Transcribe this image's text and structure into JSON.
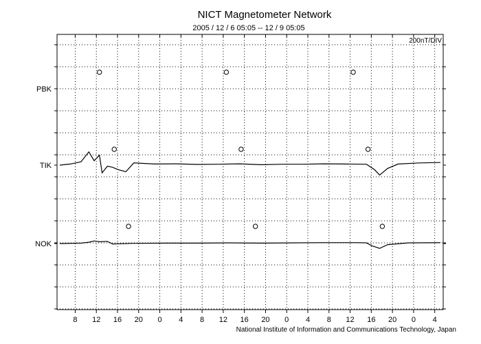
{
  "chart_data": {
    "type": "line",
    "title": "NICT Magnetometer Network",
    "subtitle": "2005 / 12 /  6   05:05 -- 12 /  9   05:05",
    "scale_label": "200nT/DIV",
    "footer": "National Institute of Information and Communications Technology, Japan",
    "x_tick_labels": [
      "8",
      "12",
      "16",
      "20",
      "0",
      "4",
      "8",
      "12",
      "16",
      "20",
      "0",
      "4",
      "8",
      "12",
      "16",
      "20",
      "0",
      "4"
    ],
    "x_hours_from_start": [
      2.917,
      6.917,
      10.917,
      14.917,
      18.917,
      22.917,
      26.917,
      30.917,
      34.917,
      38.917,
      42.917,
      46.917,
      50.917,
      54.917,
      58.917,
      62.917,
      66.917,
      70.917
    ],
    "x_range_hours": [
      0,
      72
    ],
    "grid": true,
    "stations": [
      {
        "name": "PBK",
        "midnight_markers_hours": [
          7.5,
          31.5,
          55.5
        ],
        "series": []
      },
      {
        "name": "TIK",
        "midnight_markers_hours": [
          10.3,
          34.3,
          58.3
        ],
        "series": [
          [
            0,
            0
          ],
          [
            2,
            0.05
          ],
          [
            4,
            0.15
          ],
          [
            5.5,
            0.6
          ],
          [
            6.5,
            0.2
          ],
          [
            7.5,
            0.45
          ],
          [
            8,
            -0.35
          ],
          [
            9,
            -0.05
          ],
          [
            10,
            -0.1
          ],
          [
            11,
            -0.2
          ],
          [
            12.5,
            -0.3
          ],
          [
            14,
            0.1
          ],
          [
            18,
            0.05
          ],
          [
            22,
            0.06
          ],
          [
            26,
            0.03
          ],
          [
            30,
            0.04
          ],
          [
            34,
            0.06
          ],
          [
            38,
            0.02
          ],
          [
            42,
            0.04
          ],
          [
            46,
            0.04
          ],
          [
            50,
            0.06
          ],
          [
            54,
            0.05
          ],
          [
            58,
            0.04
          ],
          [
            59.5,
            -0.2
          ],
          [
            60.5,
            -0.45
          ],
          [
            62,
            -0.15
          ],
          [
            64,
            0.05
          ],
          [
            68,
            0.1
          ],
          [
            72,
            0.12
          ]
        ]
      },
      {
        "name": "NOK",
        "midnight_markers_hours": [
          13.0,
          37.0,
          61.0
        ],
        "series": [
          [
            0,
            0
          ],
          [
            4,
            0.02
          ],
          [
            5.5,
            0.06
          ],
          [
            6.5,
            0.12
          ],
          [
            7.5,
            0.08
          ],
          [
            9,
            0.1
          ],
          [
            10,
            -0.02
          ],
          [
            14,
            0.01
          ],
          [
            20,
            0.02
          ],
          [
            26,
            0.02
          ],
          [
            32,
            0.03
          ],
          [
            38,
            0.02
          ],
          [
            44,
            0.03
          ],
          [
            50,
            0.04
          ],
          [
            56,
            0.04
          ],
          [
            58,
            0.03
          ],
          [
            59,
            -0.1
          ],
          [
            60.5,
            -0.22
          ],
          [
            62,
            -0.05
          ],
          [
            66,
            0.03
          ],
          [
            72,
            0.04
          ]
        ]
      }
    ]
  }
}
